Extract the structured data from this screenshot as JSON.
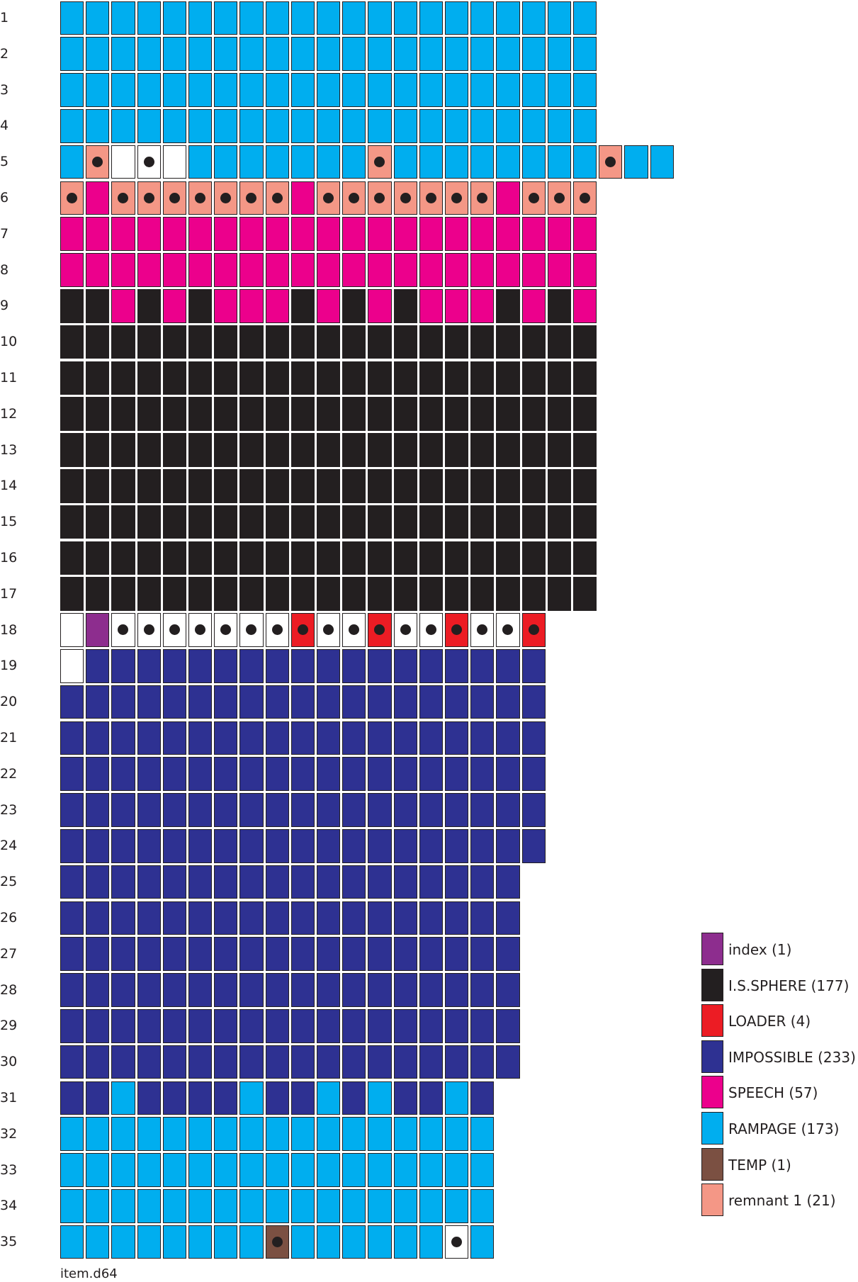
{
  "categories": {
    "w": {
      "label": "",
      "color": "#ffffff"
    },
    "i": {
      "label": "index (1)",
      "color": "#8d2d8e"
    },
    "k": {
      "label": "I.S.SPHERE (177)",
      "color": "#231f20"
    },
    "r": {
      "label": "LOADER (4)",
      "color": "#ec1c24"
    },
    "b": {
      "label": "IMPOSSIBLE (233)",
      "color": "#2e3192"
    },
    "p": {
      "label": "SPEECH (57)",
      "color": "#ec008c"
    },
    "c": {
      "label": "RAMPAGE (173)",
      "color": "#00aeef"
    },
    "t": {
      "label": "TEMP (1)",
      "color": "#7b5042"
    },
    "s": {
      "label": "remnant 1 (21)",
      "color": "#f49786"
    }
  },
  "legend_order": [
    "i",
    "k",
    "r",
    "b",
    "p",
    "c",
    "t",
    "s"
  ],
  "rows": [
    {
      "label": "1",
      "cells": "ccccccccccccccccccccc"
    },
    {
      "label": "2",
      "cells": "ccccccccccccccccccccc"
    },
    {
      "label": "3",
      "cells": "ccccccccccccccccccccc"
    },
    {
      "label": "4",
      "cells": "ccccccccccccccccccccc"
    },
    {
      "label": "5",
      "cells": "cS<X>cccccccSccccccccScc"
    },
    {
      "label": "6",
      "cells": "SpSSSSSSSpSSSSSSSpSSS"
    },
    {
      "label": "7",
      "cells": "ppppppppppppppppppppp"
    },
    {
      "label": "8",
      "cells": "ppppppppppppppppppppp"
    },
    {
      "label": "9",
      "cells": "kkpkpkpppkpkpkpppkpkp"
    },
    {
      "label": "10",
      "cells": "kkkkkkkkkkkkkkkkkkkkk"
    },
    {
      "label": "11",
      "cells": "kkkkkkkkkkkkkkkkkkkkk"
    },
    {
      "label": "12",
      "cells": "kkkkkkkkkkkkkkkkkkkkk"
    },
    {
      "label": "13",
      "cells": "kkkkkkkkkkkkkkkkkkkkk"
    },
    {
      "label": "14",
      "cells": "kkkkkkkkkkkkkkkkkkkkk"
    },
    {
      "label": "15",
      "cells": "kkkkkkkkkkkkkkkkkkkkk"
    },
    {
      "label": "16",
      "cells": "kkkkkkkkkkkkkkkkkkkkk"
    },
    {
      "label": "17",
      "cells": "kkkkkkkkkkkkkkkkkkkkk"
    },
    {
      "label": "18",
      "cells": "wiWWWWWWWRWWRWWRWWR"
    },
    {
      "label": "19",
      "cells": "wbbbbbbbbbbbbbbbbbb"
    },
    {
      "label": "20",
      "cells": "bbbbbbbbbbbbbbbbbbb"
    },
    {
      "label": "21",
      "cells": "bbbbbbbbbbbbbbbbbbb"
    },
    {
      "label": "22",
      "cells": "bbbbbbbbbbbbbbbbbbb"
    },
    {
      "label": "23",
      "cells": "bbbbbbbbbbbbbbbbbbb"
    },
    {
      "label": "24",
      "cells": "bbbbbbbbbbbbbbbbbbb"
    },
    {
      "label": "25",
      "cells": "bbbbbbbbbbbbbbbbbb"
    },
    {
      "label": "26",
      "cells": "bbbbbbbbbbbbbbbbbb"
    },
    {
      "label": "27",
      "cells": "bbbbbbbbbbbbbbbbbb"
    },
    {
      "label": "28",
      "cells": "bbbbbbbbbbbbbbbbbb"
    },
    {
      "label": "29",
      "cells": "bbbbbbbbbbbbbbbbbb"
    },
    {
      "label": "30",
      "cells": "bbbbbbbbbbbbbbbbbb"
    },
    {
      "label": "31",
      "cells": "bbcbbbbcbbcbcbbcb"
    },
    {
      "label": "32",
      "cells": "ccccccccccccccccc"
    },
    {
      "label": "33",
      "cells": "ccccccccccccccccc"
    },
    {
      "label": "34",
      "cells": "ccccccccccccccccc"
    },
    {
      "label": "35",
      "cells": "ccccccccTccccccWc"
    }
  ],
  "caption": "item.d64"
}
